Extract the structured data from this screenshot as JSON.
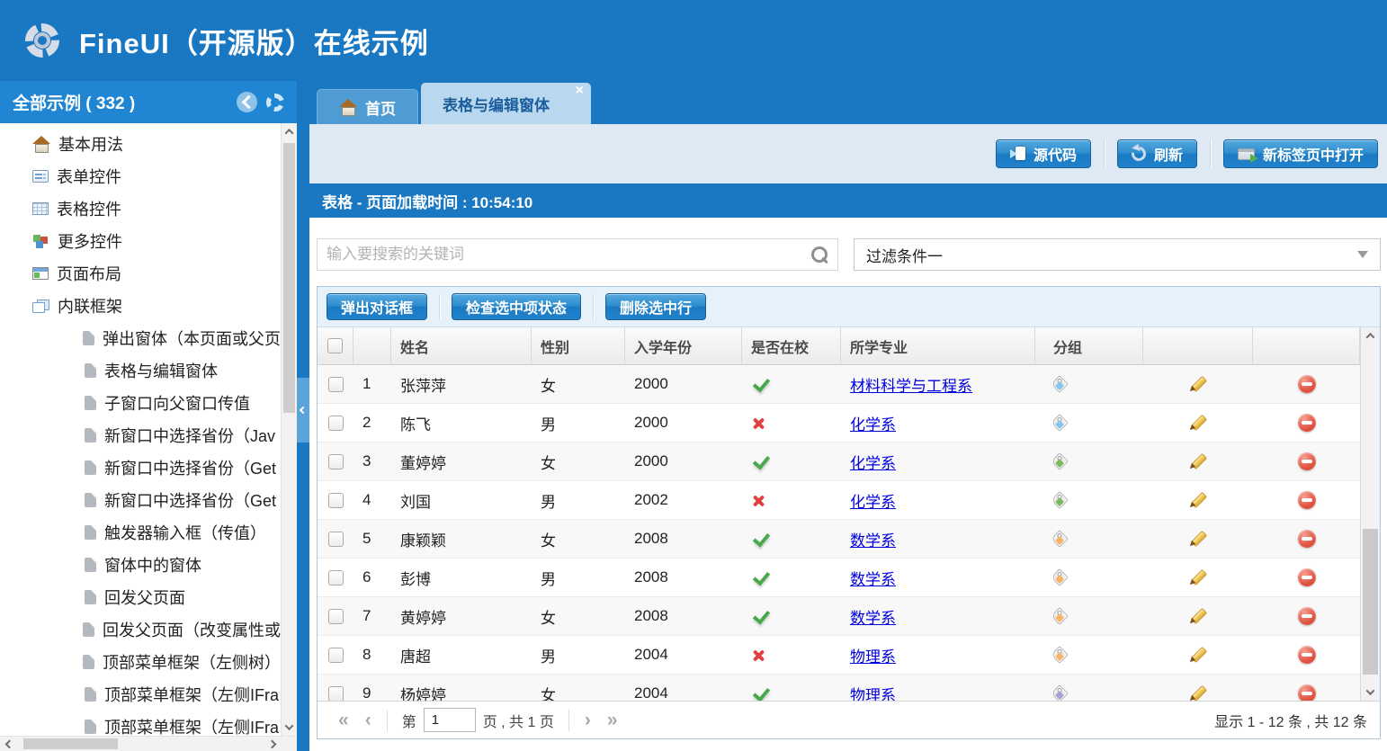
{
  "header": {
    "title": "FineUI（开源版）在线示例"
  },
  "sidebar": {
    "title": "全部示例 ( 332 )",
    "tree": [
      {
        "label": "基本用法",
        "icon": "home-icon",
        "arrow": "collapsed",
        "level": 0,
        "state": "normal"
      },
      {
        "label": "表单控件",
        "icon": "form-icon",
        "arrow": "collapsed",
        "level": 0,
        "state": "normal"
      },
      {
        "label": "表格控件",
        "icon": "table-icon",
        "arrow": "collapsed",
        "level": 0,
        "state": "normal"
      },
      {
        "label": "更多控件",
        "icon": "cubes-icon",
        "arrow": "collapsed",
        "level": 0,
        "state": "normal"
      },
      {
        "label": "页面布局",
        "icon": "layout-icon",
        "arrow": "collapsed",
        "level": 0,
        "state": "normal"
      },
      {
        "label": "内联框架",
        "icon": "frames-icon",
        "arrow": "expanded",
        "level": 0,
        "state": "normal"
      },
      {
        "label": "弹出窗体（本页面或父页",
        "icon": "file-icon",
        "arrow": "leaf",
        "level": 1,
        "state": "normal"
      },
      {
        "label": "表格与编辑窗体",
        "icon": "file-icon",
        "arrow": "leaf",
        "level": 1,
        "state": "selected"
      },
      {
        "label": "子窗口向父窗口传值",
        "icon": "file-icon",
        "arrow": "leaf",
        "level": 1,
        "state": "normal"
      },
      {
        "label": "新窗口中选择省份（Jav",
        "icon": "file-icon",
        "arrow": "leaf",
        "level": 1,
        "state": "normal"
      },
      {
        "label": "新窗口中选择省份（Get",
        "icon": "file-icon",
        "arrow": "leaf",
        "level": 1,
        "state": "normal"
      },
      {
        "label": "新窗口中选择省份（Get",
        "icon": "file-icon",
        "arrow": "leaf",
        "level": 1,
        "state": "normal"
      },
      {
        "label": "触发器输入框（传值）",
        "icon": "file-icon",
        "arrow": "leaf",
        "level": 1,
        "state": "normal"
      },
      {
        "label": "窗体中的窗体",
        "icon": "file-icon",
        "arrow": "leaf",
        "level": 1,
        "state": "normal"
      },
      {
        "label": "回发父页面",
        "icon": "file-icon",
        "arrow": "leaf",
        "level": 1,
        "state": "normal"
      },
      {
        "label": "回发父页面（改变属性或",
        "icon": "file-icon",
        "arrow": "leaf",
        "level": 1,
        "state": "normal"
      },
      {
        "label": "顶部菜单框架（左侧树）",
        "icon": "file-icon",
        "arrow": "leaf",
        "level": 1,
        "state": "normal"
      },
      {
        "label": "顶部菜单框架（左侧IFra",
        "icon": "file-icon",
        "arrow": "leaf",
        "level": 1,
        "state": "normal"
      },
      {
        "label": "顶部菜单框架（左侧IFra",
        "icon": "file-icon",
        "arrow": "leaf",
        "level": 1,
        "state": "normal"
      }
    ]
  },
  "tabs": [
    {
      "label": "首页",
      "icon": "home-icon",
      "state": "inactive"
    },
    {
      "label": "表格与编辑窗体",
      "state": "active",
      "closable": true,
      "close_glyph": "×"
    }
  ],
  "toolbar": {
    "buttons": [
      {
        "label": "源代码",
        "icon": "source-code-icon"
      },
      {
        "label": "刷新",
        "icon": "refresh-icon"
      },
      {
        "label": "新标签页中打开",
        "icon": "open-newtab-icon"
      }
    ]
  },
  "panel": {
    "title": "表格 - 页面加载时间 : 10:54:10"
  },
  "filters": {
    "search_placeholder": "输入要搜索的关键词",
    "filter_value": "过滤条件一"
  },
  "grid": {
    "buttons": [
      {
        "label": "弹出对话框"
      },
      {
        "label": "检查选中项状态"
      },
      {
        "label": "删除选中行"
      }
    ],
    "columns": [
      {
        "key": "check",
        "label": "",
        "check": true
      },
      {
        "key": "num",
        "label": ""
      },
      {
        "key": "name",
        "label": "姓名"
      },
      {
        "key": "gender",
        "label": "性别"
      },
      {
        "key": "year",
        "label": "入学年份"
      },
      {
        "key": "status",
        "label": "是否在校"
      },
      {
        "key": "major",
        "label": "所学专业"
      },
      {
        "key": "group",
        "label": "分组"
      },
      {
        "key": "edit",
        "label": ""
      },
      {
        "key": "del",
        "label": ""
      }
    ],
    "rows": [
      {
        "num": "1",
        "name": "张萍萍",
        "gender": "女",
        "year": "2000",
        "atSchool": true,
        "major": "材料科学与工程系",
        "tag": "blue"
      },
      {
        "num": "2",
        "name": "陈飞",
        "gender": "男",
        "year": "2000",
        "atSchool": false,
        "major": "化学系",
        "tag": "blue"
      },
      {
        "num": "3",
        "name": "董婷婷",
        "gender": "女",
        "year": "2000",
        "atSchool": true,
        "major": "化学系",
        "tag": "green"
      },
      {
        "num": "4",
        "name": "刘国",
        "gender": "男",
        "year": "2002",
        "atSchool": false,
        "major": "化学系",
        "tag": "green"
      },
      {
        "num": "5",
        "name": "康颖颖",
        "gender": "女",
        "year": "2008",
        "atSchool": true,
        "major": "数学系",
        "tag": "orange"
      },
      {
        "num": "6",
        "name": "彭博",
        "gender": "男",
        "year": "2008",
        "atSchool": true,
        "major": "数学系",
        "tag": "orange"
      },
      {
        "num": "7",
        "name": "黄婷婷",
        "gender": "女",
        "year": "2008",
        "atSchool": true,
        "major": "数学系",
        "tag": "orange"
      },
      {
        "num": "8",
        "name": "唐超",
        "gender": "男",
        "year": "2004",
        "atSchool": false,
        "major": "物理系",
        "tag": "orange"
      },
      {
        "num": "9",
        "name": "杨婷婷",
        "gender": "女",
        "year": "2004",
        "atSchool": true,
        "major": "物理系",
        "tag": "purple"
      }
    ],
    "pager": {
      "first": "«",
      "prev": "‹",
      "page_prefix": "第",
      "page_value": "1",
      "page_suffix": "页 , 共 1 页",
      "next": "›",
      "last": "»",
      "summary": "显示 1 - 12 条 , 共 12 条"
    }
  }
}
